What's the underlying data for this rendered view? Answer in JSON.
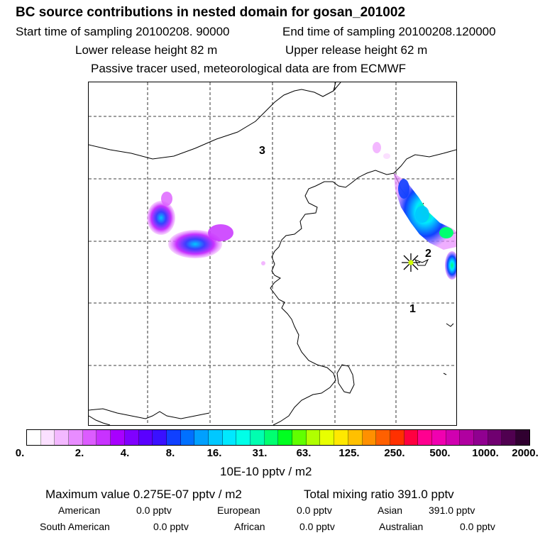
{
  "header": {
    "title": "BC  source contributions in nested domain for gosan_201002",
    "start_time": "Start time of sampling 20100208. 90000",
    "end_time": "End time of sampling 20100208.120000",
    "lower_height": "Lower release height   82 m",
    "upper_height": "Upper release height   62 m",
    "note": "Passive tracer used, meteorological data are from ECMWF"
  },
  "map": {
    "region_labels": [
      "3",
      "2",
      "1"
    ],
    "marker": "receptor-star"
  },
  "colorbar": {
    "tick_labels": [
      "0.",
      "2.",
      "4.",
      "8.",
      "16.",
      "31.",
      "63.",
      "125.",
      "250.",
      "500.",
      "1000.",
      "2000."
    ],
    "colors": [
      "#ffffff",
      "#fbe0ff",
      "#f3b8ff",
      "#e88cff",
      "#dc5cff",
      "#c832ff",
      "#a800ff",
      "#8000ff",
      "#5a00ff",
      "#3a10ff",
      "#1040ff",
      "#0070ff",
      "#00a0ff",
      "#00c8ff",
      "#00e8ff",
      "#00ffe8",
      "#00ffb0",
      "#00ff70",
      "#00ff20",
      "#60ff00",
      "#b0ff00",
      "#e8ff00",
      "#ffe800",
      "#ffc000",
      "#ff9000",
      "#ff6000",
      "#ff3000",
      "#ff0040",
      "#ff0090",
      "#f000b0",
      "#d000b0",
      "#b000a0",
      "#900090",
      "#700070",
      "#500050",
      "#300030"
    ],
    "unit": "10E-10 pptv / m2"
  },
  "summary": {
    "maximum": "Maximum value  0.275E-07 pptv / m2",
    "total_mixing": "Total mixing ratio      391.0 pptv",
    "rows": [
      [
        {
          "label": "American",
          "value": "0.0 pptv"
        },
        {
          "label": "European",
          "value": "0.0 pptv"
        },
        {
          "label": "Asian",
          "value": "391.0 pptv"
        }
      ],
      [
        {
          "label": "South American",
          "value": "0.0 pptv"
        },
        {
          "label": "African",
          "value": "0.0 pptv"
        },
        {
          "label": "Australian",
          "value": "0.0 pptv"
        }
      ]
    ]
  }
}
